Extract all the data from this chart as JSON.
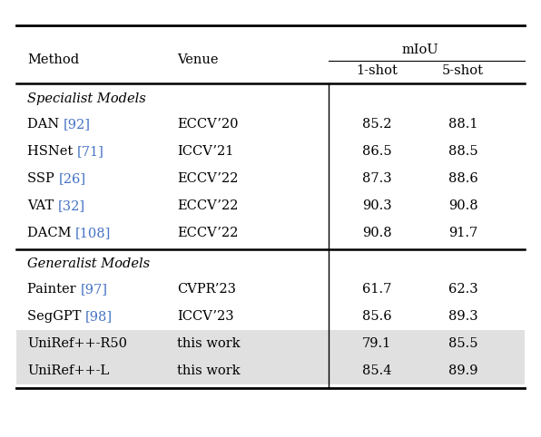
{
  "header_col1": "Method",
  "header_col2": "Venue",
  "header_miou": "mIoU",
  "header_1shot": "1-shot",
  "header_5shot": "5-shot",
  "section1_label": "Specialist Models",
  "section2_label": "Generalist Models",
  "rows": [
    {
      "method_base": "DAN ",
      "ref": "[92]",
      "venue": "ECCV’20",
      "shot1": "85.2",
      "shot5": "88.1",
      "highlight": false,
      "section": 1
    },
    {
      "method_base": "HSNet ",
      "ref": "[71]",
      "venue": "ICCV’21",
      "shot1": "86.5",
      "shot5": "88.5",
      "highlight": false,
      "section": 1
    },
    {
      "method_base": "SSP ",
      "ref": "[26]",
      "venue": "ECCV’22",
      "shot1": "87.3",
      "shot5": "88.6",
      "highlight": false,
      "section": 1
    },
    {
      "method_base": "VAT ",
      "ref": "[32]",
      "venue": "ECCV’22",
      "shot1": "90.3",
      "shot5": "90.8",
      "highlight": false,
      "section": 1
    },
    {
      "method_base": "DACM ",
      "ref": "[108]",
      "venue": "ECCV’22",
      "shot1": "90.8",
      "shot5": "91.7",
      "highlight": false,
      "section": 1
    },
    {
      "method_base": "Painter ",
      "ref": "[97]",
      "venue": "CVPR’23",
      "shot1": "61.7",
      "shot5": "62.3",
      "highlight": false,
      "section": 2
    },
    {
      "method_base": "SegGPT ",
      "ref": "[98]",
      "venue": "ICCV’23",
      "shot1": "85.6",
      "shot5": "89.3",
      "highlight": false,
      "section": 2
    },
    {
      "method_base": "UniRef++-R50",
      "ref": null,
      "venue": "this work",
      "shot1": "79.1",
      "shot5": "85.5",
      "highlight": true,
      "section": 2
    },
    {
      "method_base": "UniRef++-L",
      "ref": null,
      "venue": "this work",
      "shot1": "85.4",
      "shot5": "89.9",
      "highlight": true,
      "section": 2
    }
  ],
  "ref_color": "#4472C4",
  "highlight_color": "#E0E0E0",
  "text_color": "#000000",
  "line_color": "#000000",
  "bg_color": "#FFFFFF",
  "font_size": 10.5
}
